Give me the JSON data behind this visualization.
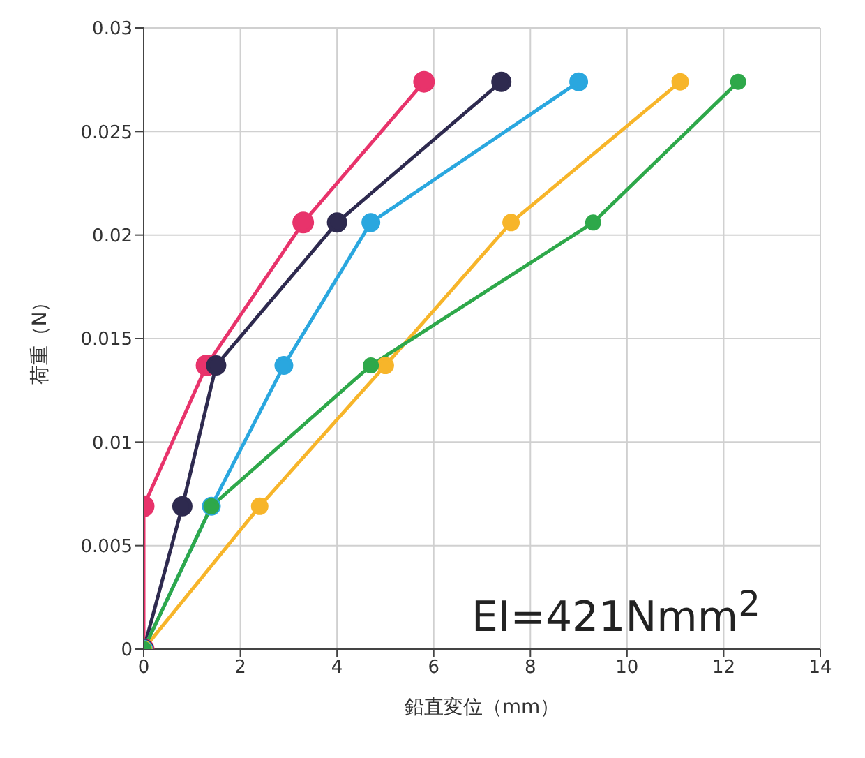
{
  "chart_data": {
    "type": "line",
    "xlabel": "鉛直変位（mm）",
    "ylabel": "荷重（N）",
    "xlim": [
      0,
      14
    ],
    "xticks": [
      0,
      2,
      4,
      6,
      8,
      10,
      12,
      14
    ],
    "ylim": [
      0,
      0.03
    ],
    "yticks": [
      0,
      0.005,
      0.01,
      0.015,
      0.02,
      0.025,
      0.03
    ],
    "grid": true,
    "marker": "circle",
    "annotations": [
      "EI=421Nmm$^{2}$"
    ],
    "series": [
      {
        "color": "#e8336b",
        "x": [
          0,
          0,
          1.3,
          3.3,
          5.8
        ],
        "values": [
          0,
          0.0069,
          0.0137,
          0.0206,
          0.0274
        ]
      },
      {
        "color": "#2e2a4f",
        "x": [
          0,
          0.8,
          1.5,
          4.0,
          7.4
        ],
        "values": [
          0,
          0.0069,
          0.0137,
          0.0206,
          0.0274
        ]
      },
      {
        "color": "#2aa7df",
        "x": [
          0,
          1.4,
          2.9,
          4.7,
          9.0
        ],
        "values": [
          0,
          0.0069,
          0.0137,
          0.0206,
          0.0274
        ]
      },
      {
        "color": "#f7b52a",
        "x": [
          0,
          2.4,
          5.0,
          7.6,
          11.1
        ],
        "values": [
          0,
          0.0069,
          0.0137,
          0.0206,
          0.0274
        ]
      },
      {
        "color": "#2ea84a",
        "x": [
          0,
          1.4,
          4.7,
          9.3,
          12.3
        ],
        "values": [
          0,
          0.0069,
          0.0137,
          0.0206,
          0.0274
        ]
      }
    ]
  }
}
